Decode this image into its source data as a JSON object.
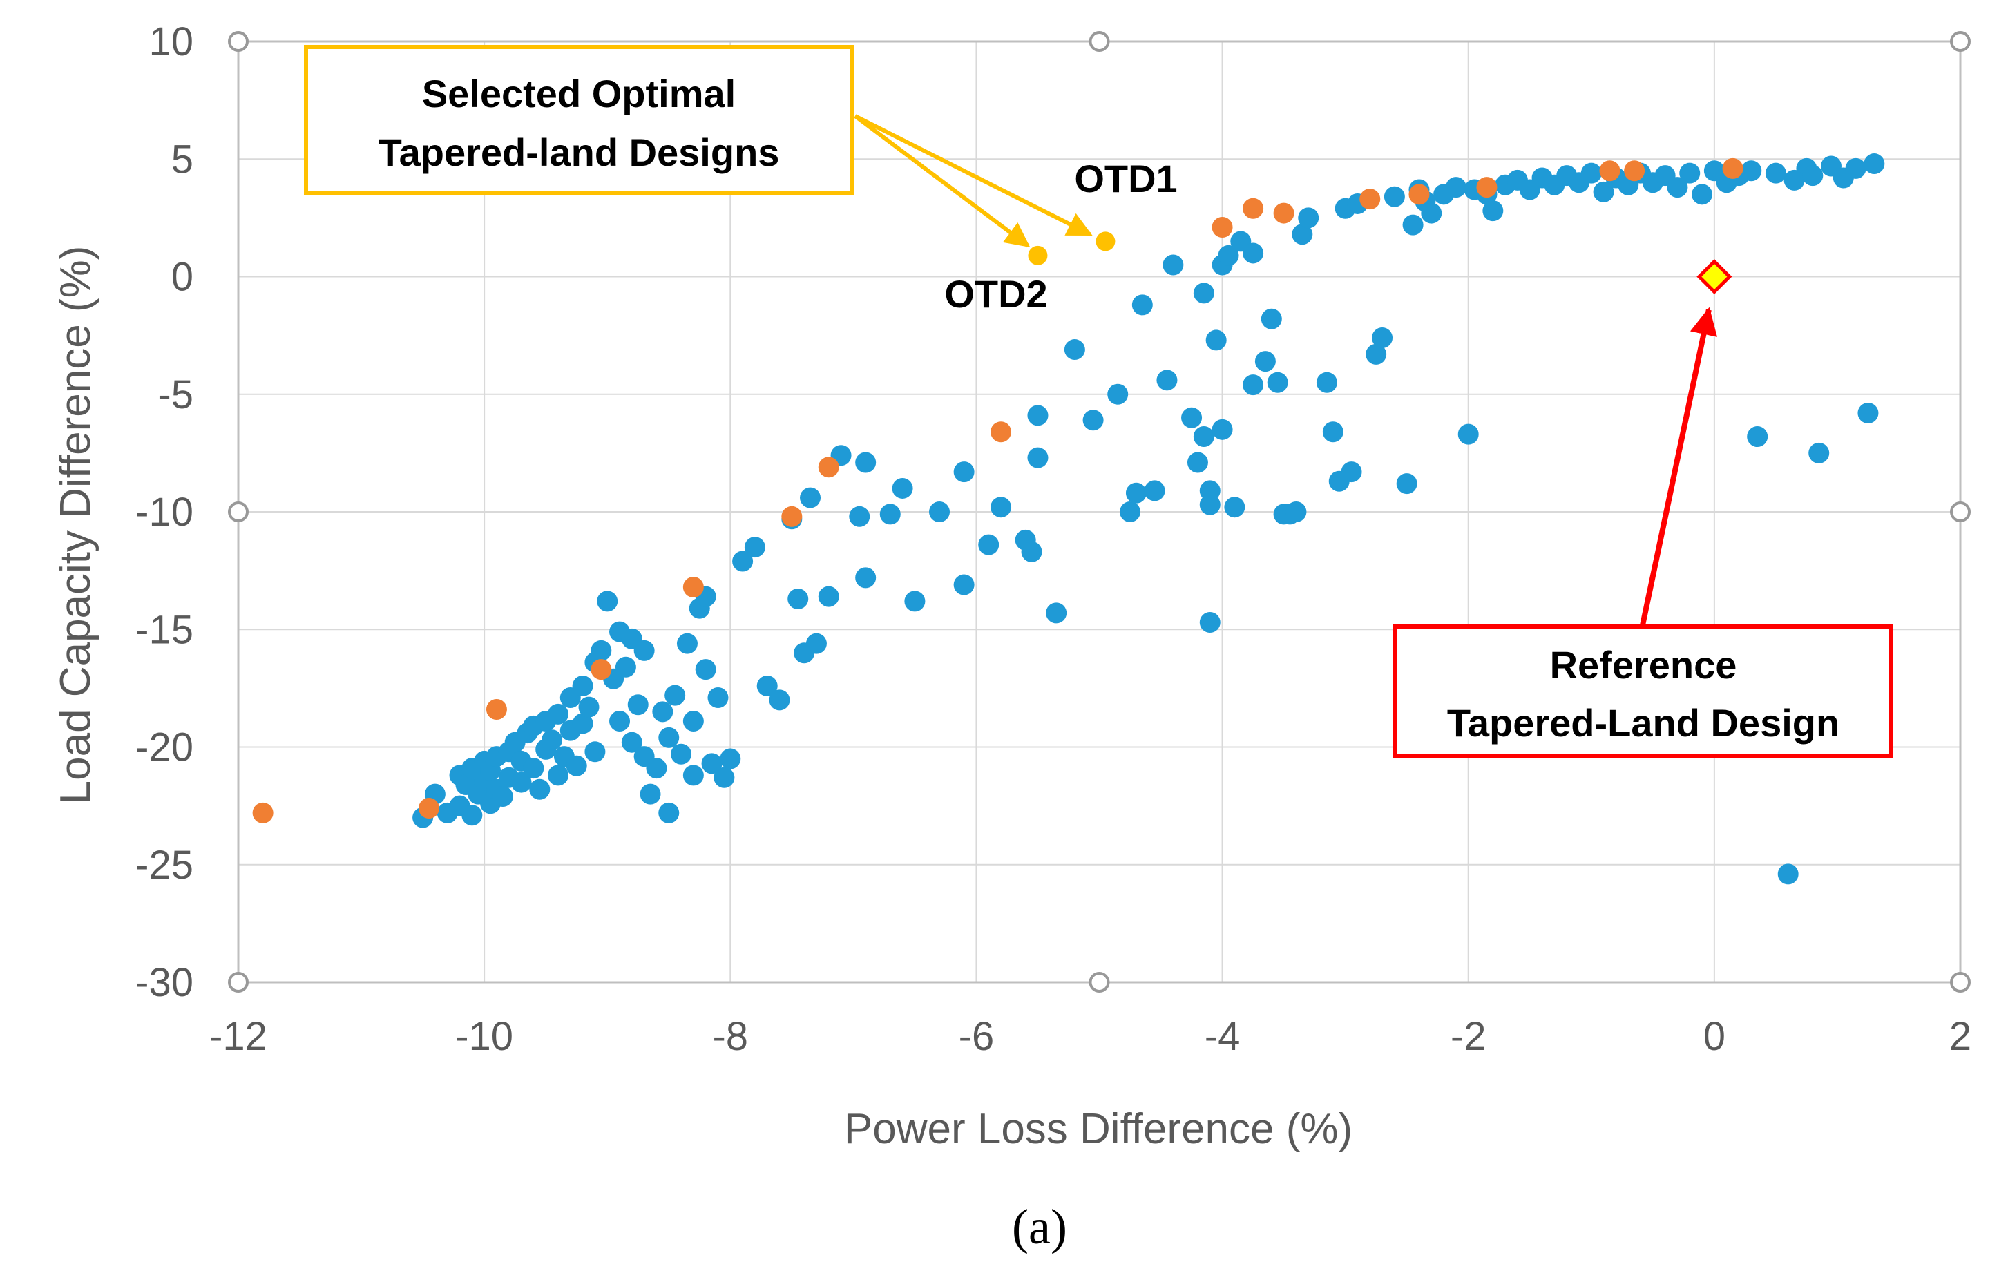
{
  "chart_data": {
    "type": "scatter",
    "xlabel": "Power Loss Difference (%)",
    "ylabel": "Load Capacity Difference (%)",
    "xlim": [
      -12,
      2
    ],
    "ylim": [
      -30,
      10
    ],
    "x_ticks": [
      -12,
      -10,
      -8,
      -6,
      -4,
      -2,
      0,
      2
    ],
    "y_ticks": [
      10,
      5,
      0,
      -5,
      -10,
      -15,
      -20,
      -25,
      -30
    ],
    "grid": true,
    "caption": "(a)",
    "colors": {
      "blue": "#1f9ad6",
      "orange": "#f07f33",
      "yellow": "#ffc000",
      "reference_fill": "#ffff00",
      "reference_stroke": "#ff0000",
      "box_yellow": "#ffc000",
      "box_red": "#ff0000"
    },
    "series": [
      {
        "name": "Blue designs",
        "color": "#1f9ad6",
        "points": [
          [
            -10.5,
            -23.0
          ],
          [
            -10.4,
            -22.0
          ],
          [
            -10.3,
            -22.8
          ],
          [
            -10.2,
            -21.2
          ],
          [
            -10.2,
            -22.5
          ],
          [
            -10.15,
            -21.6
          ],
          [
            -10.1,
            -22.9
          ],
          [
            -10.1,
            -20.9
          ],
          [
            -10.05,
            -22.0
          ],
          [
            -10.0,
            -21.4
          ],
          [
            -10.0,
            -20.6
          ],
          [
            -9.95,
            -22.4
          ],
          [
            -9.95,
            -21.0
          ],
          [
            -9.9,
            -20.4
          ],
          [
            -9.9,
            -21.8
          ],
          [
            -9.85,
            -22.1
          ],
          [
            -9.8,
            -20.2
          ],
          [
            -9.8,
            -21.3
          ],
          [
            -9.75,
            -19.8
          ],
          [
            -9.7,
            -21.5
          ],
          [
            -9.7,
            -20.6
          ],
          [
            -9.65,
            -19.4
          ],
          [
            -9.6,
            -20.9
          ],
          [
            -9.6,
            -19.1
          ],
          [
            -9.55,
            -21.8
          ],
          [
            -9.5,
            -20.1
          ],
          [
            -9.5,
            -18.9
          ],
          [
            -9.45,
            -19.7
          ],
          [
            -9.4,
            -21.2
          ],
          [
            -9.4,
            -18.6
          ],
          [
            -9.35,
            -20.4
          ],
          [
            -9.3,
            -19.3
          ],
          [
            -9.3,
            -17.9
          ],
          [
            -9.25,
            -20.8
          ],
          [
            -9.2,
            -19.0
          ],
          [
            -9.2,
            -17.4
          ],
          [
            -9.15,
            -18.3
          ],
          [
            -9.1,
            -20.2
          ],
          [
            -9.1,
            -16.4
          ],
          [
            -9.05,
            -15.9
          ],
          [
            -9.0,
            -13.8
          ],
          [
            -8.95,
            -17.1
          ],
          [
            -8.9,
            -15.1
          ],
          [
            -8.9,
            -18.9
          ],
          [
            -8.85,
            -16.6
          ],
          [
            -8.8,
            -15.4
          ],
          [
            -8.8,
            -19.8
          ],
          [
            -8.75,
            -18.2
          ],
          [
            -8.7,
            -15.9
          ],
          [
            -8.7,
            -20.4
          ],
          [
            -8.65,
            -22.0
          ],
          [
            -8.6,
            -20.9
          ],
          [
            -8.55,
            -18.5
          ],
          [
            -8.5,
            -22.8
          ],
          [
            -8.5,
            -19.6
          ],
          [
            -8.45,
            -17.8
          ],
          [
            -8.4,
            -20.3
          ],
          [
            -8.35,
            -15.6
          ],
          [
            -8.3,
            -21.2
          ],
          [
            -8.3,
            -18.9
          ],
          [
            -8.25,
            -14.1
          ],
          [
            -8.2,
            -16.7
          ],
          [
            -8.2,
            -13.6
          ],
          [
            -8.15,
            -20.7
          ],
          [
            -8.1,
            -17.9
          ],
          [
            -8.05,
            -21.3
          ],
          [
            -8.0,
            -20.5
          ],
          [
            -7.9,
            -12.1
          ],
          [
            -7.8,
            -11.5
          ],
          [
            -7.7,
            -17.4
          ],
          [
            -7.6,
            -18.0
          ],
          [
            -7.5,
            -10.3
          ],
          [
            -7.45,
            -13.7
          ],
          [
            -7.4,
            -16.0
          ],
          [
            -7.35,
            -9.4
          ],
          [
            -7.3,
            -15.6
          ],
          [
            -7.2,
            -13.6
          ],
          [
            -7.1,
            -7.6
          ],
          [
            -6.95,
            -10.2
          ],
          [
            -6.9,
            -12.8
          ],
          [
            -6.9,
            -7.9
          ],
          [
            -6.7,
            -10.1
          ],
          [
            -6.6,
            -9.0
          ],
          [
            -6.5,
            -13.8
          ],
          [
            -6.3,
            -10.0
          ],
          [
            -6.1,
            -8.3
          ],
          [
            -6.1,
            -13.1
          ],
          [
            -5.9,
            -11.4
          ],
          [
            -5.8,
            -9.8
          ],
          [
            -5.6,
            -11.2
          ],
          [
            -5.55,
            -11.7
          ],
          [
            -5.5,
            -5.9
          ],
          [
            -5.5,
            -7.7
          ],
          [
            -5.35,
            -14.3
          ],
          [
            -5.2,
            -3.1
          ],
          [
            -5.05,
            -6.1
          ],
          [
            -4.85,
            -5.0
          ],
          [
            -4.75,
            -10.0
          ],
          [
            -4.7,
            -9.2
          ],
          [
            -4.65,
            -1.2
          ],
          [
            -4.55,
            -9.1
          ],
          [
            -4.45,
            -4.4
          ],
          [
            -4.4,
            0.5
          ],
          [
            -4.25,
            -6.0
          ],
          [
            -4.2,
            -7.9
          ],
          [
            -4.15,
            -6.8
          ],
          [
            -4.15,
            -0.7
          ],
          [
            -4.1,
            -9.7
          ],
          [
            -4.1,
            -9.1
          ],
          [
            -4.1,
            -14.7
          ],
          [
            -4.05,
            -2.7
          ],
          [
            -4.0,
            -6.5
          ],
          [
            -4.0,
            0.5
          ],
          [
            -3.95,
            0.9
          ],
          [
            -3.9,
            -9.8
          ],
          [
            -3.85,
            1.5
          ],
          [
            -3.75,
            -4.6
          ],
          [
            -3.75,
            1.0
          ],
          [
            -3.65,
            -3.6
          ],
          [
            -3.6,
            -1.8
          ],
          [
            -3.55,
            -4.5
          ],
          [
            -3.5,
            -10.1
          ],
          [
            -3.45,
            -10.1
          ],
          [
            -3.4,
            -10.0
          ],
          [
            -3.35,
            1.8
          ],
          [
            -3.3,
            2.5
          ],
          [
            -3.15,
            -4.5
          ],
          [
            -3.1,
            -6.6
          ],
          [
            -3.05,
            -8.7
          ],
          [
            -3.0,
            2.9
          ],
          [
            -2.95,
            -8.3
          ],
          [
            -2.9,
            3.1
          ],
          [
            -2.75,
            -3.3
          ],
          [
            -2.7,
            -2.6
          ],
          [
            -2.6,
            3.4
          ],
          [
            -2.5,
            -8.8
          ],
          [
            -2.45,
            2.2
          ],
          [
            -2.4,
            3.7
          ],
          [
            -2.35,
            3.2
          ],
          [
            -2.3,
            2.7
          ],
          [
            -2.2,
            3.5
          ],
          [
            -2.1,
            3.8
          ],
          [
            -2.0,
            -6.7
          ],
          [
            -1.95,
            3.7
          ],
          [
            -1.85,
            3.5
          ],
          [
            -1.8,
            2.8
          ],
          [
            -1.7,
            3.9
          ],
          [
            -1.6,
            4.1
          ],
          [
            -1.5,
            3.7
          ],
          [
            -1.4,
            4.2
          ],
          [
            -1.3,
            3.9
          ],
          [
            -1.2,
            4.3
          ],
          [
            -1.1,
            4.0
          ],
          [
            -1.0,
            4.4
          ],
          [
            -0.9,
            3.6
          ],
          [
            -0.8,
            4.2
          ],
          [
            -0.7,
            3.9
          ],
          [
            -0.6,
            4.4
          ],
          [
            -0.5,
            4.0
          ],
          [
            -0.4,
            4.3
          ],
          [
            -0.3,
            3.8
          ],
          [
            -0.2,
            4.4
          ],
          [
            -0.1,
            3.5
          ],
          [
            0.0,
            4.5
          ],
          [
            0.1,
            4.0
          ],
          [
            0.2,
            4.3
          ],
          [
            0.3,
            4.5
          ],
          [
            0.35,
            -6.8
          ],
          [
            0.5,
            4.4
          ],
          [
            0.6,
            -25.4
          ],
          [
            0.65,
            4.1
          ],
          [
            0.75,
            4.6
          ],
          [
            0.8,
            4.3
          ],
          [
            0.85,
            -7.5
          ],
          [
            0.95,
            4.7
          ],
          [
            1.05,
            4.2
          ],
          [
            1.15,
            4.6
          ],
          [
            1.25,
            -5.8
          ],
          [
            1.3,
            4.8
          ]
        ]
      },
      {
        "name": "Orange designs",
        "color": "#f07f33",
        "points": [
          [
            -11.8,
            -22.8
          ],
          [
            -10.45,
            -22.6
          ],
          [
            -9.9,
            -18.4
          ],
          [
            -9.05,
            -16.7
          ],
          [
            -8.3,
            -13.2
          ],
          [
            -7.5,
            -10.2
          ],
          [
            -7.2,
            -8.1
          ],
          [
            -5.8,
            -6.6
          ],
          [
            -4.0,
            2.1
          ],
          [
            -3.75,
            2.9
          ],
          [
            -3.5,
            2.7
          ],
          [
            -2.8,
            3.3
          ],
          [
            -2.4,
            3.5
          ],
          [
            -1.85,
            3.8
          ],
          [
            -0.85,
            4.5
          ],
          [
            -0.65,
            4.5
          ],
          [
            0.15,
            4.6
          ]
        ]
      },
      {
        "name": "Selected optimal designs",
        "color": "#ffc000",
        "points": [
          [
            -4.95,
            1.5
          ],
          [
            -5.5,
            0.9
          ]
        ],
        "labels": [
          "OTD1",
          "OTD2"
        ]
      },
      {
        "name": "Reference design",
        "color": "#ffff00",
        "points": [
          [
            0.0,
            0.0
          ]
        ]
      }
    ],
    "annotations": {
      "selected_box_line1": "Selected Optimal",
      "selected_box_line2": "Tapered-land Designs",
      "reference_box_line1": "Reference",
      "reference_box_line2": "Tapered-Land Design",
      "otd1": "OTD1",
      "otd2": "OTD2"
    }
  }
}
